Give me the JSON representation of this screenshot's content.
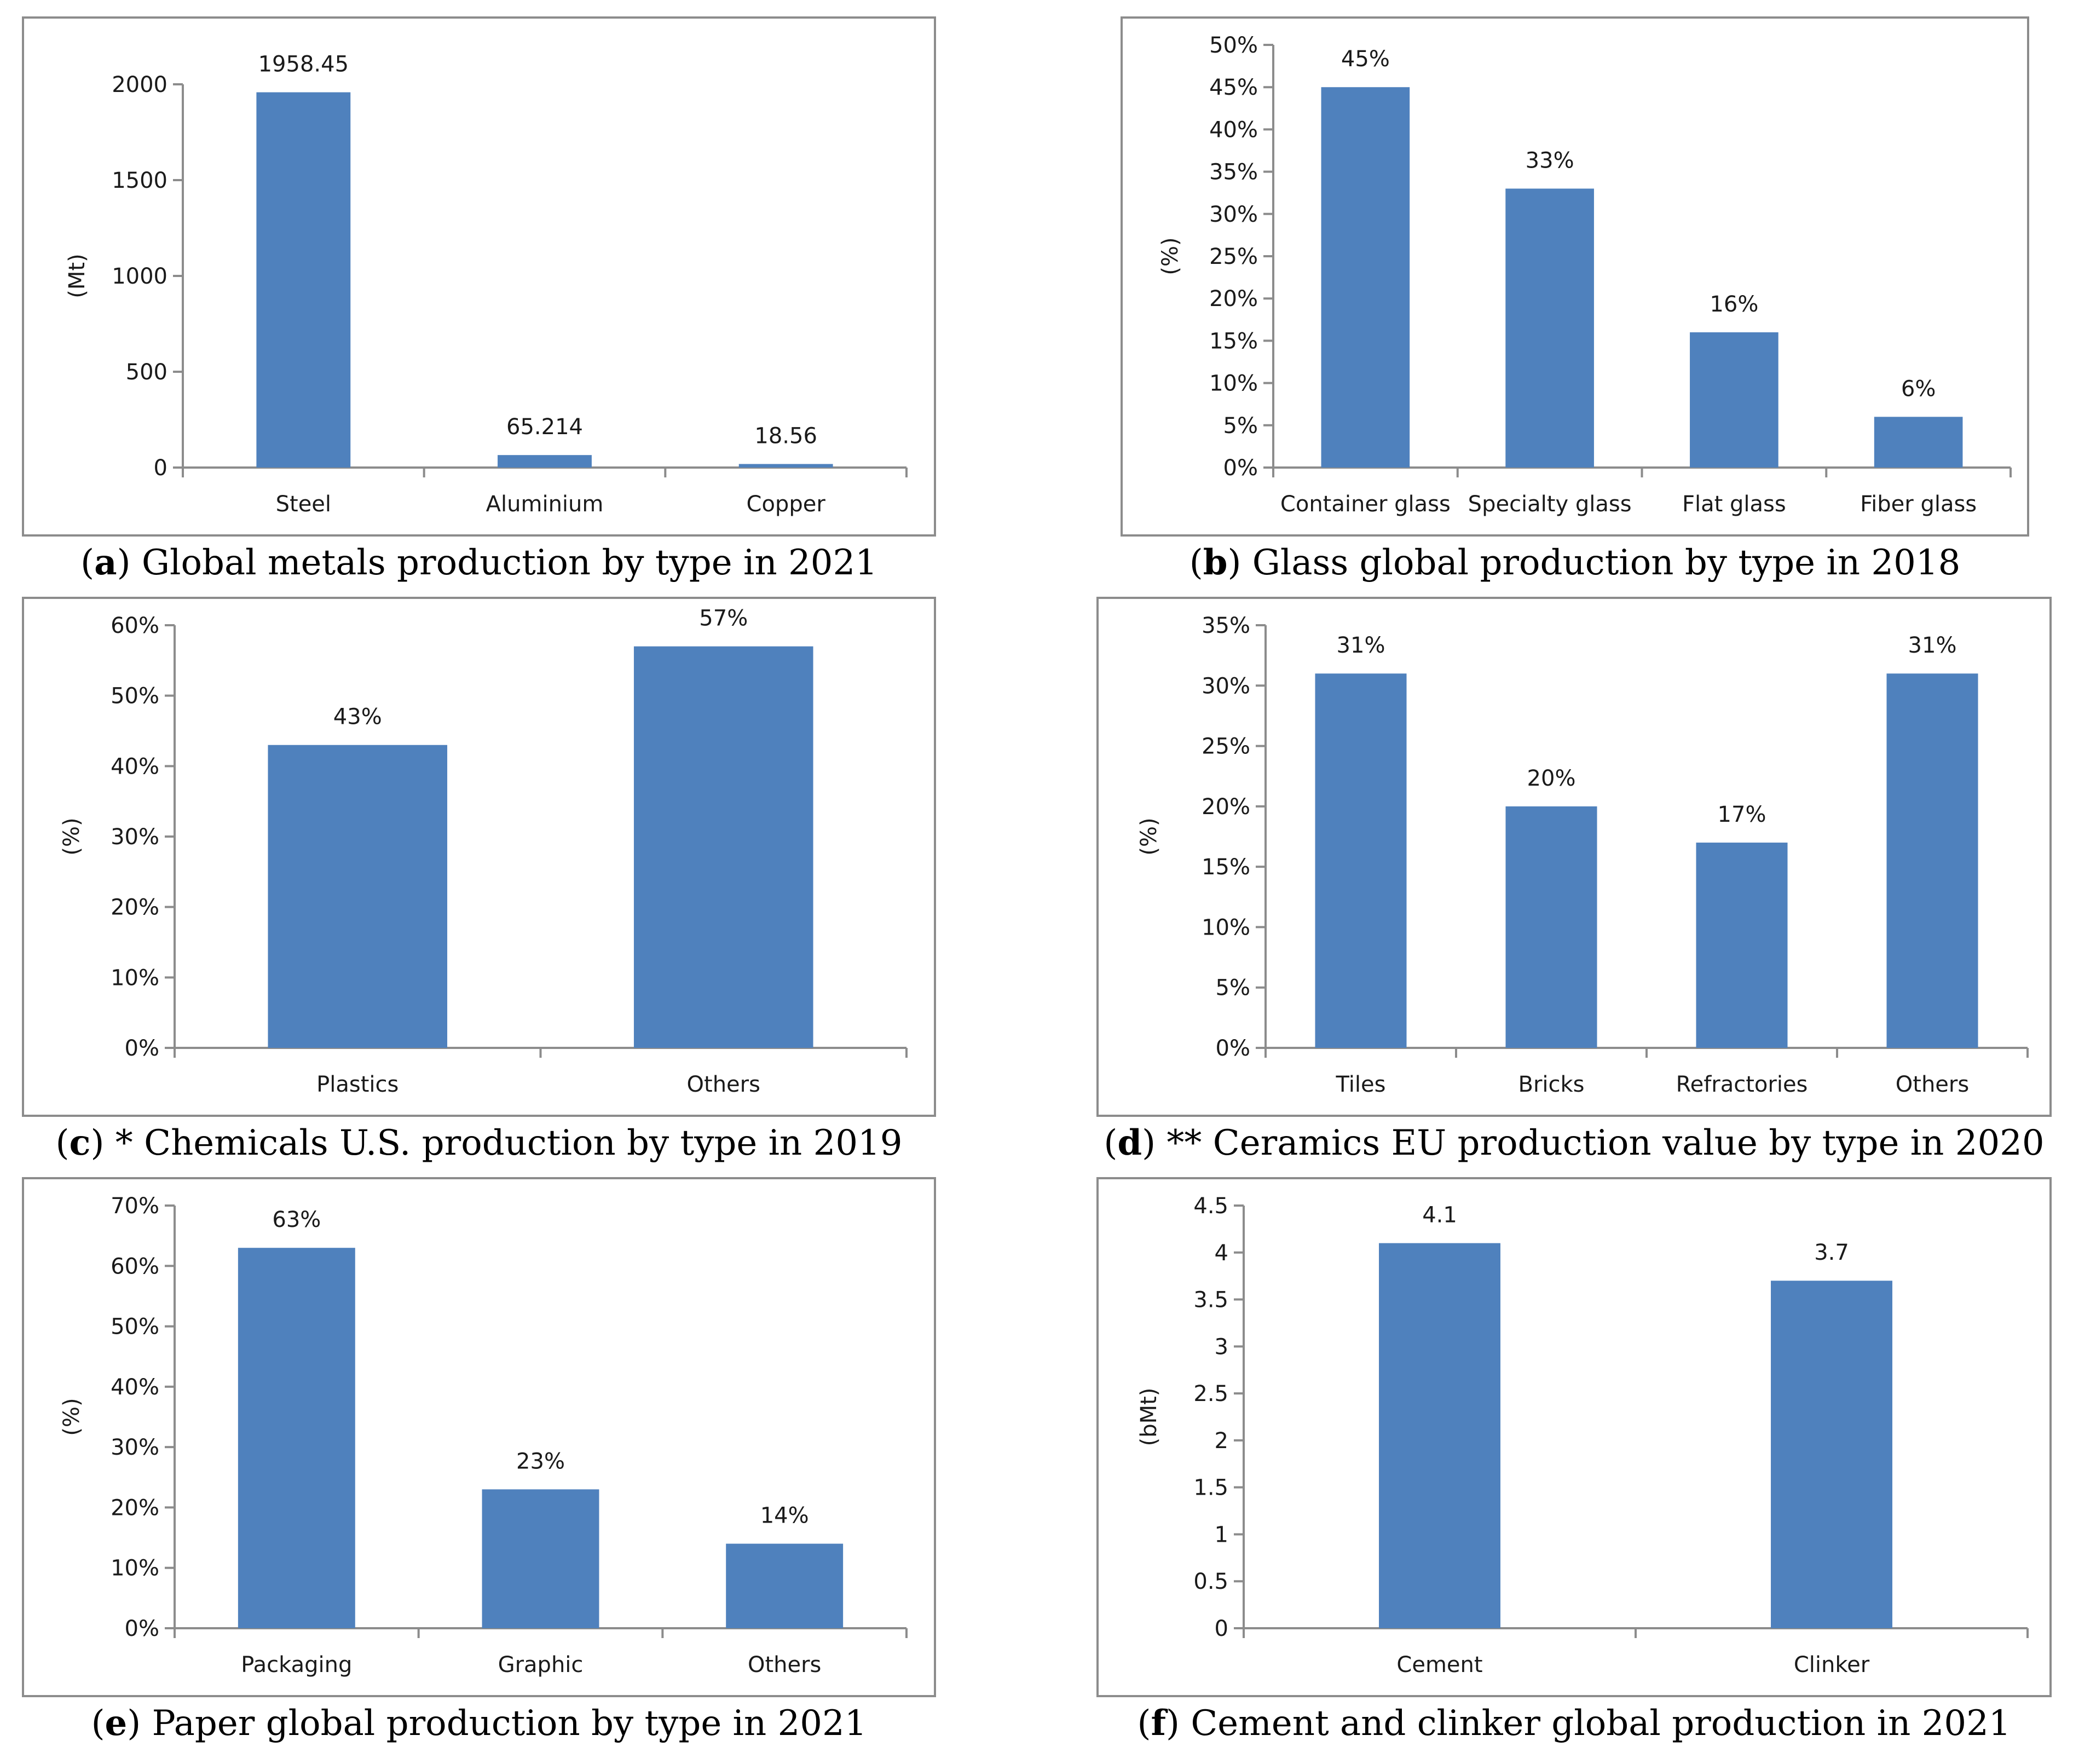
{
  "colors": {
    "bar": "#4f81bd",
    "axis": "#8c8c8c",
    "text": "#1a1a1a"
  },
  "chart_data": [
    {
      "id": "a",
      "type": "bar",
      "caption_letter": "a",
      "caption_text": " Global metals production by type in 2021",
      "categories": [
        "Steel",
        "Aluminium",
        "Copper"
      ],
      "values": [
        1958.45,
        65.214,
        18.56
      ],
      "data_labels": [
        "1958.45",
        "65.214",
        "18.56"
      ],
      "ylabel": "(Mt)",
      "ylim": [
        0,
        2000
      ],
      "yticks": [
        0,
        500,
        1000,
        1500,
        2000
      ],
      "ytick_labels": [
        "0",
        "500",
        "1000",
        "1500",
        "2000"
      ]
    },
    {
      "id": "b",
      "type": "bar",
      "caption_letter": "b",
      "caption_text": " Glass global production by type in 2018",
      "categories": [
        "Container glass",
        "Specialty glass",
        "Flat glass",
        "Fiber glass"
      ],
      "values": [
        45,
        33,
        16,
        6
      ],
      "data_labels": [
        "45%",
        "33%",
        "16%",
        "6%"
      ],
      "ylabel": "(%)",
      "ylim": [
        0,
        50
      ],
      "yticks": [
        0,
        5,
        10,
        15,
        20,
        25,
        30,
        35,
        40,
        45,
        50
      ],
      "ytick_labels": [
        "0%",
        "5%",
        "10%",
        "15%",
        "20%",
        "25%",
        "30%",
        "35%",
        "40%",
        "45%",
        "50%"
      ]
    },
    {
      "id": "c",
      "type": "bar",
      "caption_letter": "c",
      "caption_text": " * Chemicals U.S. production by type in 2019",
      "categories": [
        "Plastics",
        "Others"
      ],
      "values": [
        43,
        57
      ],
      "data_labels": [
        "43%",
        "57%"
      ],
      "ylabel": "(%)",
      "ylim": [
        0,
        60
      ],
      "yticks": [
        0,
        10,
        20,
        30,
        40,
        50,
        60
      ],
      "ytick_labels": [
        "0%",
        "10%",
        "20%",
        "30%",
        "40%",
        "50%",
        "60%"
      ]
    },
    {
      "id": "d",
      "type": "bar",
      "caption_letter": "d",
      "caption_text": " ** Ceramics EU production value by type in 2020",
      "categories": [
        "Tiles",
        "Bricks",
        "Refractories",
        "Others"
      ],
      "values": [
        31,
        20,
        17,
        31
      ],
      "data_labels": [
        "31%",
        "20%",
        "17%",
        "31%"
      ],
      "ylabel": "(%)",
      "ylim": [
        0,
        35
      ],
      "yticks": [
        0,
        5,
        10,
        15,
        20,
        25,
        30,
        35
      ],
      "ytick_labels": [
        "0%",
        "5%",
        "10%",
        "15%",
        "20%",
        "25%",
        "30%",
        "35%"
      ]
    },
    {
      "id": "e",
      "type": "bar",
      "caption_letter": "e",
      "caption_text": " Paper global production by type in 2021",
      "categories": [
        "Packaging",
        "Graphic",
        "Others"
      ],
      "values": [
        63,
        23,
        14
      ],
      "data_labels": [
        "63%",
        "23%",
        "14%"
      ],
      "ylabel": "(%)",
      "ylim": [
        0,
        70
      ],
      "yticks": [
        0,
        10,
        20,
        30,
        40,
        50,
        60,
        70
      ],
      "ytick_labels": [
        "0%",
        "10%",
        "20%",
        "30%",
        "40%",
        "50%",
        "60%",
        "70%"
      ]
    },
    {
      "id": "f",
      "type": "bar",
      "caption_letter": "f",
      "caption_text": " Cement and clinker global production in 2021",
      "categories": [
        "Cement",
        "Clinker"
      ],
      "values": [
        4.1,
        3.7
      ],
      "data_labels": [
        "4.1",
        "3.7"
      ],
      "ylabel": "(bMt)",
      "ylim": [
        0,
        4.5
      ],
      "yticks": [
        0,
        0.5,
        1,
        1.5,
        2,
        2.5,
        3,
        3.5,
        4,
        4.5
      ],
      "ytick_labels": [
        "0",
        "0.5",
        "1",
        "1.5",
        "2",
        "2.5",
        "3",
        "3.5",
        "4",
        "4.5"
      ]
    }
  ]
}
